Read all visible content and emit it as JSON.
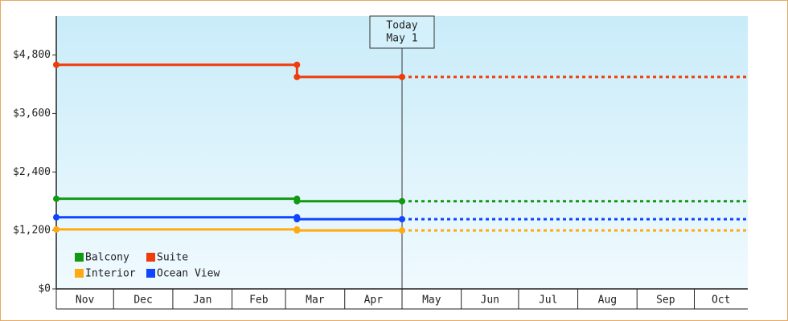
{
  "chart_data": {
    "type": "line",
    "x": [
      0,
      126,
      126,
      181
    ],
    "xlim": [
      0,
      362
    ],
    "xticks": [
      {
        "value": 0,
        "label": "Nov"
      },
      {
        "value": 30,
        "label": "Dec"
      },
      {
        "value": 61,
        "label": "Jan"
      },
      {
        "value": 92,
        "label": "Feb"
      },
      {
        "value": 120,
        "label": "Mar"
      },
      {
        "value": 151,
        "label": "Apr"
      },
      {
        "value": 181,
        "label": "May"
      },
      {
        "value": 212,
        "label": "Jun"
      },
      {
        "value": 242,
        "label": "Jul"
      },
      {
        "value": 273,
        "label": "Aug"
      },
      {
        "value": 304,
        "label": "Sep"
      },
      {
        "value": 334,
        "label": "Oct"
      }
    ],
    "ylim": [
      0,
      5600
    ],
    "yticks": [
      {
        "value": 0,
        "label": "$0"
      },
      {
        "value": 1200,
        "label": "$1,200"
      },
      {
        "value": 2400,
        "label": "$2,400"
      },
      {
        "value": 3600,
        "label": "$3,600"
      },
      {
        "value": 4800,
        "label": "$4,800"
      }
    ],
    "series": [
      {
        "name": "Balcony",
        "color": "#119911",
        "values": [
          1850,
          1850,
          1800,
          1800
        ]
      },
      {
        "name": "Suite",
        "color": "#f03c0a",
        "values": [
          4600,
          4600,
          4350,
          4350
        ]
      },
      {
        "name": "Interior",
        "color": "#ffaa11",
        "values": [
          1220,
          1220,
          1200,
          1200
        ]
      },
      {
        "name": "Ocean View",
        "color": "#1144ff",
        "values": [
          1470,
          1470,
          1430,
          1430
        ]
      }
    ],
    "today": {
      "x": 181,
      "label": "Today",
      "date": "May 1"
    },
    "legend": "bottom-left"
  }
}
